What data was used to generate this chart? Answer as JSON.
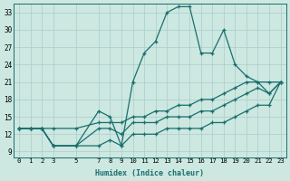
{
  "xlabel": "Humidex (Indice chaleur)",
  "background_color": "#cce8e0",
  "grid_color": "#aacccc",
  "line_color": "#1a6e6e",
  "xlim": [
    -0.5,
    23.5
  ],
  "ylim": [
    8.0,
    34.5
  ],
  "xticks": [
    0,
    1,
    2,
    3,
    5,
    7,
    8,
    9,
    10,
    11,
    12,
    13,
    14,
    15,
    16,
    17,
    18,
    19,
    20,
    21,
    22,
    23
  ],
  "yticks": [
    9,
    12,
    15,
    18,
    21,
    24,
    27,
    30,
    33
  ],
  "x": [
    0,
    1,
    2,
    3,
    5,
    7,
    8,
    9,
    10,
    11,
    12,
    13,
    14,
    15,
    16,
    17,
    18,
    19,
    20,
    21,
    22,
    23
  ],
  "line_spike_y": [
    13,
    13,
    13,
    10,
    10,
    16,
    15,
    10,
    21,
    26,
    28,
    33,
    34,
    34,
    26,
    26,
    30,
    24,
    22,
    21,
    19,
    21
  ],
  "line_upper_y": [
    13,
    13,
    13,
    13,
    13,
    14,
    14,
    14,
    15,
    15,
    16,
    16,
    17,
    17,
    18,
    18,
    19,
    20,
    21,
    21,
    21,
    21
  ],
  "line_lower_y": [
    13,
    13,
    13,
    10,
    10,
    10,
    11,
    10,
    12,
    12,
    12,
    13,
    13,
    13,
    13,
    14,
    14,
    15,
    16,
    17,
    17,
    21
  ],
  "line_mid_y": [
    13,
    13,
    13,
    10,
    10,
    13,
    13,
    12,
    14,
    14,
    14,
    15,
    15,
    15,
    16,
    16,
    17,
    18,
    19,
    20,
    19,
    21
  ]
}
